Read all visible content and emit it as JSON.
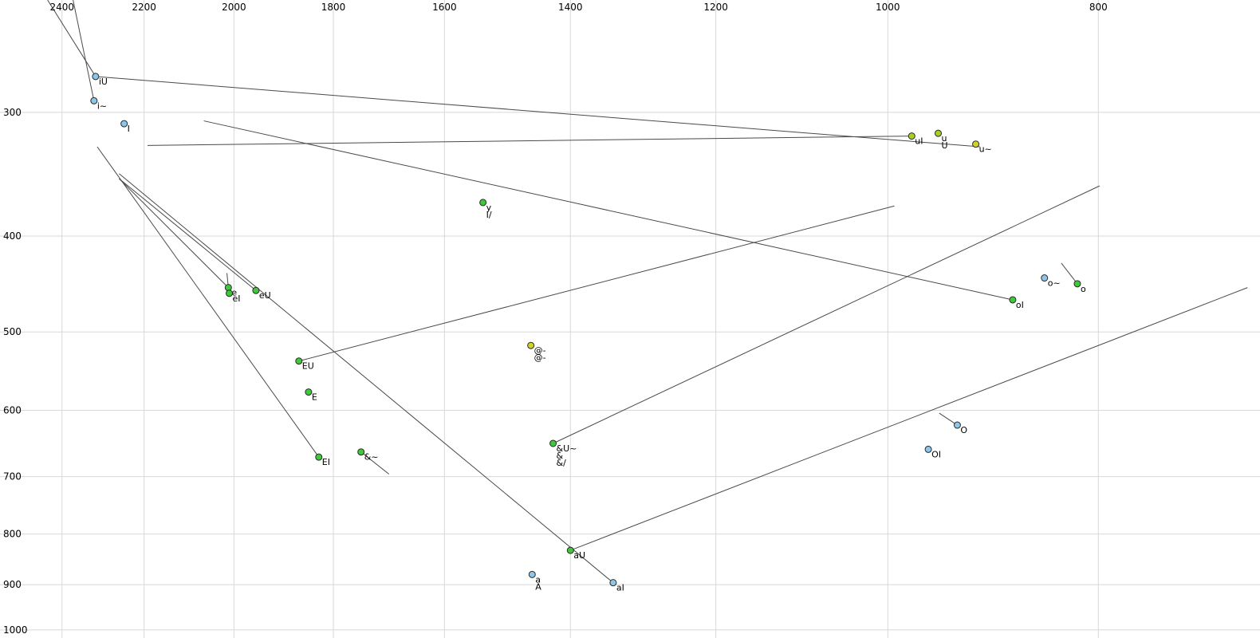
{
  "chart_data": {
    "type": "scatter",
    "title": "",
    "xlabel": "",
    "ylabel": "",
    "x_scale": "log",
    "y_scale": "log",
    "x_reversed": true,
    "y_increases_downward": true,
    "grid": true,
    "x_ticks": [
      2400,
      2200,
      2000,
      1800,
      1600,
      1400,
      1200,
      1000,
      800
    ],
    "y_ticks": [
      300,
      400,
      500,
      600,
      700,
      800,
      900,
      1000
    ],
    "x_range": [
      2563,
      674
    ],
    "y_range": [
      231,
      1019
    ],
    "colors": {
      "blue": "#8cc6e8",
      "green": "#3fc83c",
      "yellowgreen": "#a8d020",
      "yellow": "#d2d22a",
      "line": "#4a4a4a",
      "grid": "#d8d8d8",
      "point_stroke": "#2a2a2a",
      "tick_text": "#000000"
    },
    "points": [
      {
        "labels": [
          "iU"
        ],
        "f2": 2316,
        "f1": 276,
        "color": "blue"
      },
      {
        "labels": [
          "i~"
        ],
        "f2": 2320,
        "f1": 292,
        "color": "blue"
      },
      {
        "labels": [
          "I"
        ],
        "f2": 2247,
        "f1": 308,
        "color": "blue"
      },
      {
        "labels": [
          "uI"
        ],
        "f2": 975,
        "f1": 317,
        "color": "yellowgreen"
      },
      {
        "labels": [
          "u",
          "U"
        ],
        "f2": 948,
        "f1": 315,
        "color": "yellowgreen"
      },
      {
        "labels": [
          "u~"
        ],
        "f2": 911,
        "f1": 323,
        "color": "yellow"
      },
      {
        "labels": [
          "y",
          "I/"
        ],
        "f2": 1536,
        "f1": 370,
        "color": "green"
      },
      {
        "labels": [
          "e"
        ],
        "f2": 2012,
        "f1": 451,
        "color": "green"
      },
      {
        "labels": [
          "eI"
        ],
        "f2": 2010,
        "f1": 457,
        "color": "green"
      },
      {
        "labels": [
          "eU"
        ],
        "f2": 1954,
        "f1": 454,
        "color": "green"
      },
      {
        "labels": [
          "EU"
        ],
        "f2": 1867,
        "f1": 535,
        "color": "green"
      },
      {
        "labels": [
          "E"
        ],
        "f2": 1848,
        "f1": 575,
        "color": "green"
      },
      {
        "labels": [
          "EI"
        ],
        "f2": 1828,
        "f1": 669,
        "color": "green"
      },
      {
        "labels": [
          "&~"
        ],
        "f2": 1748,
        "f1": 661,
        "color": "green"
      },
      {
        "labels": [
          "@-",
          "@-"
        ],
        "f2": 1460,
        "f1": 516,
        "color": "yellow"
      },
      {
        "labels": [
          "&U~",
          "&",
          "&/"
        ],
        "f2": 1426,
        "f1": 648,
        "color": "green"
      },
      {
        "labels": [
          "O"
        ],
        "f2": 929,
        "f1": 621,
        "color": "blue"
      },
      {
        "labels": [
          "OI"
        ],
        "f2": 958,
        "f1": 657,
        "color": "blue"
      },
      {
        "labels": [
          "oI"
        ],
        "f2": 876,
        "f1": 464,
        "color": "green"
      },
      {
        "labels": [
          "o~"
        ],
        "f2": 847,
        "f1": 441,
        "color": "blue"
      },
      {
        "labels": [
          "o"
        ],
        "f2": 818,
        "f1": 447,
        "color": "green"
      },
      {
        "labels": [
          "aU"
        ],
        "f2": 1400,
        "f1": 831,
        "color": "green"
      },
      {
        "labels": [
          "a",
          "A"
        ],
        "f2": 1458,
        "f1": 879,
        "color": "blue"
      },
      {
        "labels": [
          "aI"
        ],
        "f2": 1338,
        "f1": 896,
        "color": "blue"
      }
    ],
    "segments": [
      {
        "x1": 2437,
        "y1": 231,
        "x2": 2316,
        "y2": 276
      },
      {
        "x1": 2372,
        "y1": 231,
        "x2": 2320,
        "y2": 292
      },
      {
        "x1": 2316,
        "y1": 276,
        "x2": 907,
        "y2": 325
      },
      {
        "x1": 2192,
        "y1": 324,
        "x2": 975,
        "y2": 317
      },
      {
        "x1": 876,
        "y1": 464,
        "x2": 2065,
        "y2": 306
      },
      {
        "x1": 1867,
        "y1": 535,
        "x2": 993,
        "y2": 373
      },
      {
        "x1": 1338,
        "y1": 896,
        "x2": 2259,
        "y2": 346
      },
      {
        "x1": 1400,
        "y1": 831,
        "x2": 683,
        "y2": 451
      },
      {
        "x1": 1828,
        "y1": 669,
        "x2": 2312,
        "y2": 325
      },
      {
        "x1": 2015,
        "y1": 436,
        "x2": 2012,
        "y2": 451
      },
      {
        "x1": 2259,
        "y1": 350,
        "x2": 2012,
        "y2": 451
      },
      {
        "x1": 2259,
        "y1": 350,
        "x2": 1954,
        "y2": 454
      },
      {
        "x1": 799,
        "y1": 356,
        "x2": 1426,
        "y2": 648
      },
      {
        "x1": 947,
        "y1": 604,
        "x2": 929,
        "y2": 621
      },
      {
        "x1": 1748,
        "y1": 661,
        "x2": 1697,
        "y2": 696
      },
      {
        "x1": 832,
        "y1": 426,
        "x2": 818,
        "y2": 447
      }
    ]
  }
}
